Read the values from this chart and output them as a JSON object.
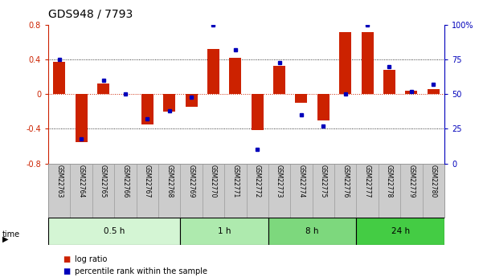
{
  "title": "GDS948 / 7793",
  "samples": [
    "GSM22763",
    "GSM22764",
    "GSM22765",
    "GSM22766",
    "GSM22767",
    "GSM22768",
    "GSM22769",
    "GSM22770",
    "GSM22771",
    "GSM22772",
    "GSM22773",
    "GSM22774",
    "GSM22775",
    "GSM22776",
    "GSM22777",
    "GSM22778",
    "GSM22779",
    "GSM22780"
  ],
  "log_ratio": [
    0.37,
    -0.55,
    0.12,
    0.0,
    -0.35,
    -0.2,
    -0.15,
    0.52,
    0.42,
    -0.41,
    0.33,
    -0.1,
    -0.3,
    0.72,
    0.72,
    0.28,
    0.04,
    0.06
  ],
  "percentile": [
    75,
    18,
    60,
    50,
    32,
    38,
    48,
    100,
    82,
    10,
    73,
    35,
    27,
    50,
    100,
    70,
    52,
    57
  ],
  "time_groups": [
    {
      "label": "0.5 h",
      "start": 0,
      "end": 6,
      "color": "#d4f5d4"
    },
    {
      "label": "1 h",
      "start": 6,
      "end": 10,
      "color": "#aeeaae"
    },
    {
      "label": "8 h",
      "start": 10,
      "end": 14,
      "color": "#7dd87d"
    },
    {
      "label": "24 h",
      "start": 14,
      "end": 18,
      "color": "#44cc44"
    }
  ],
  "ylim": [
    -0.8,
    0.8
  ],
  "yticks_left": [
    -0.8,
    -0.4,
    0.0,
    0.4,
    0.8
  ],
  "ytick_labels_left": [
    "-0.8",
    "-0.4",
    "0",
    "0.4",
    "0.8"
  ],
  "right_yticks": [
    0,
    25,
    50,
    75,
    100
  ],
  "right_ytick_labels": [
    "0",
    "25",
    "50",
    "75",
    "100%"
  ],
  "right_ylim": [
    0,
    100
  ],
  "bar_color": "#cc2200",
  "dot_color": "#0000bb",
  "background_color": "#ffffff",
  "title_fontsize": 10,
  "tick_fontsize": 7,
  "label_area_color": "#cccccc",
  "label_area_border": "#999999",
  "legend_items": [
    "log ratio",
    "percentile rank within the sample"
  ]
}
